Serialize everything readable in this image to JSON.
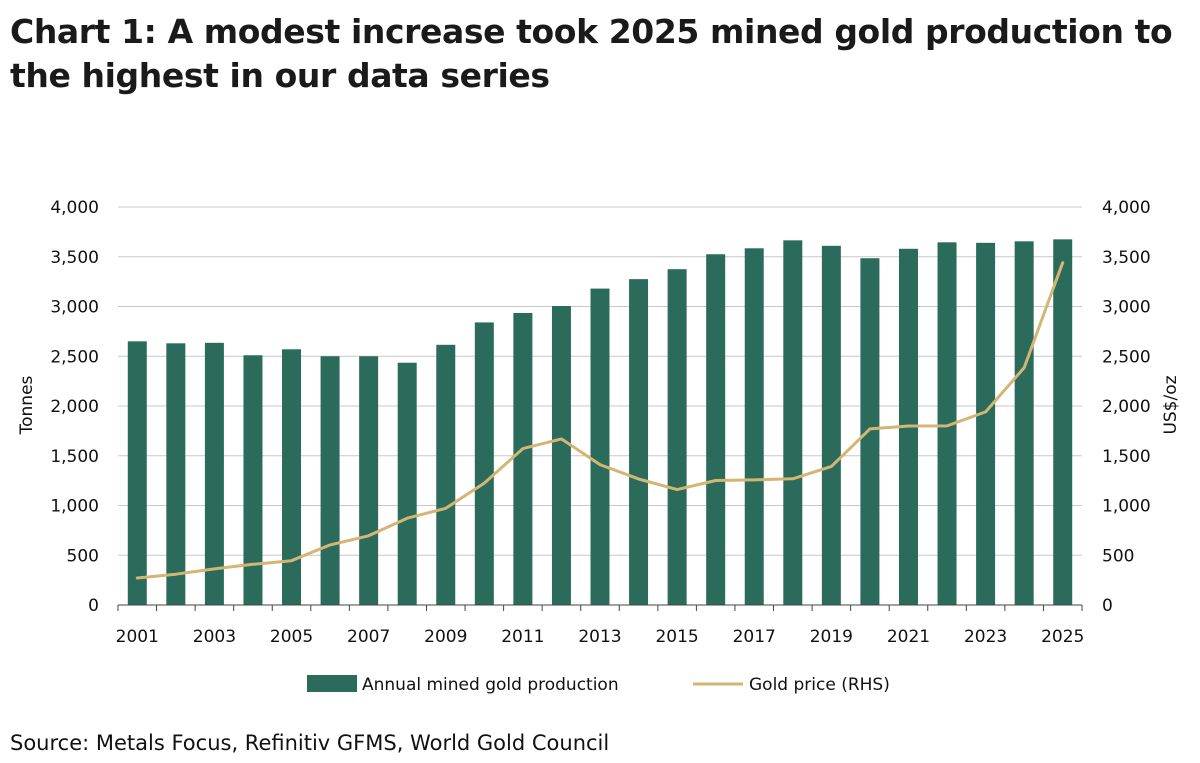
{
  "title": "Chart 1: A modest increase took 2025 mined gold production to the highest in our data series",
  "source": "Source: Metals Focus, Refinitiv GFMS, World Gold Council",
  "colors": {
    "bar": "#2b6b5c",
    "line": "#d3b574",
    "grid": "#c8c8c8",
    "axis": "#444444"
  },
  "chart_data": {
    "type": "bar",
    "ylabel": "Tonnes",
    "y2label": "US$/oz",
    "ylim": [
      0,
      4000
    ],
    "y2lim": [
      0,
      4000
    ],
    "y_ticks": [
      0,
      500,
      1000,
      1500,
      2000,
      2500,
      3000,
      3500,
      4000
    ],
    "y_tick_labels": [
      "0",
      "500",
      "1,000",
      "1,500",
      "2,000",
      "2,500",
      "3,000",
      "3,500",
      "4,000"
    ],
    "y2_ticks": [
      0,
      500,
      1000,
      1500,
      2000,
      2500,
      3000,
      3500,
      4000
    ],
    "y2_tick_labels": [
      "0",
      "500",
      "1,000",
      "1,500",
      "2,000",
      "2,500",
      "3,000",
      "3,500",
      "4,000"
    ],
    "categories": [
      "2001",
      "2002",
      "2003",
      "2004",
      "2005",
      "2006",
      "2007",
      "2008",
      "2009",
      "2010",
      "2011",
      "2012",
      "2013",
      "2014",
      "2015",
      "2016",
      "2017",
      "2018",
      "2019",
      "2020",
      "2021",
      "2022",
      "2023",
      "2024",
      "2025"
    ],
    "x_tick_labels": [
      "2001",
      "2003",
      "2005",
      "2007",
      "2009",
      "2011",
      "2013",
      "2015",
      "2017",
      "2019",
      "2021",
      "2023",
      "2025"
    ],
    "grid": true,
    "legend_position": "bottom",
    "series": [
      {
        "name": "Annual mined gold production",
        "type": "bar",
        "axis": "left",
        "values": [
          2650,
          2630,
          2635,
          2510,
          2570,
          2500,
          2500,
          2435,
          2615,
          2840,
          2935,
          3005,
          3180,
          3275,
          3375,
          3525,
          3585,
          3665,
          3610,
          3485,
          3580,
          3645,
          3640,
          3655,
          3675
        ]
      },
      {
        "name": "Gold price (RHS)",
        "type": "line",
        "axis": "right",
        "values": [
          271,
          310,
          363,
          409,
          445,
          604,
          695,
          872,
          972,
          1225,
          1572,
          1669,
          1411,
          1266,
          1160,
          1251,
          1257,
          1268,
          1393,
          1770,
          1799,
          1800,
          1941,
          2386,
          3440
        ]
      }
    ]
  }
}
